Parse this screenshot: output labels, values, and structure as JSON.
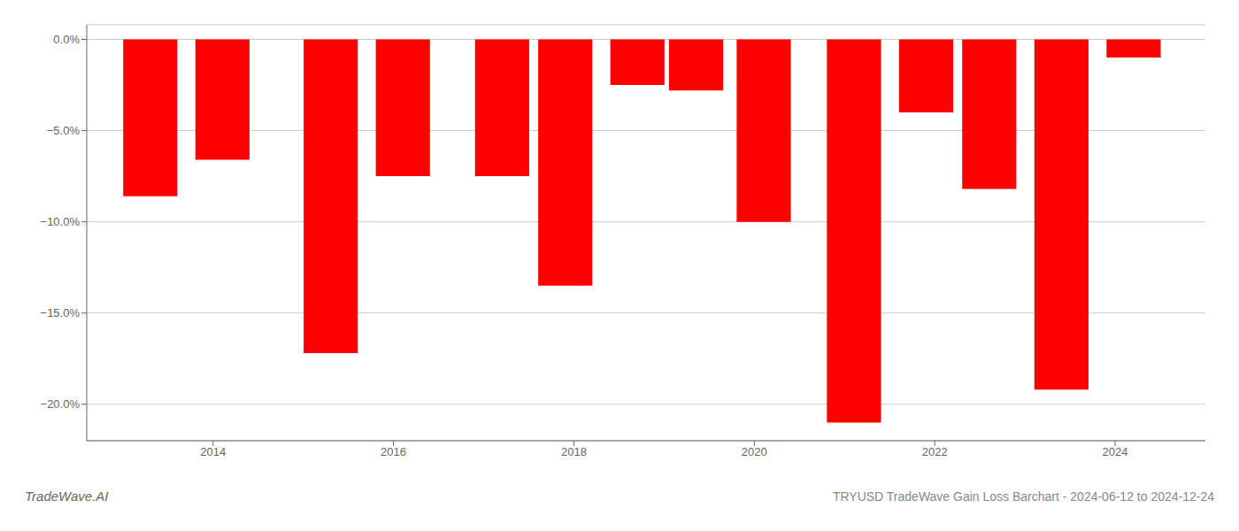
{
  "chart_data": {
    "type": "bar",
    "title": "TRYUSD TradeWave Gain Loss Barchart - 2024-06-12 to 2024-12-24",
    "annotations": [
      "TradeWave.AI"
    ],
    "x": [
      2013.3,
      2014.1,
      2015.3,
      2016.1,
      2017.2,
      2017.9,
      2018.7,
      2019.35,
      2020.1,
      2021.1,
      2021.9,
      2022.6,
      2023.4,
      2024.2
    ],
    "values": [
      -8.6,
      -6.6,
      -17.2,
      -7.5,
      -7.5,
      -13.5,
      -2.5,
      -2.8,
      -10.0,
      -21.0,
      -4.0,
      -8.2,
      -19.2,
      -1.0
    ],
    "color": "#ff0000",
    "xlim": [
      2012.6,
      2025.0
    ],
    "xticks": [
      2014,
      2016,
      2018,
      2020,
      2022,
      2024
    ],
    "ylim": [
      -22.0,
      0.8
    ],
    "yticks": [
      {
        "value": 0.0,
        "label": "0.0%"
      },
      {
        "value": -5.0,
        "label": "−5.0%"
      },
      {
        "value": -10.0,
        "label": "−10.0%"
      },
      {
        "value": -15.0,
        "label": "−15.0%"
      },
      {
        "value": -20.0,
        "label": "−20.0%"
      }
    ],
    "grid": true
  }
}
